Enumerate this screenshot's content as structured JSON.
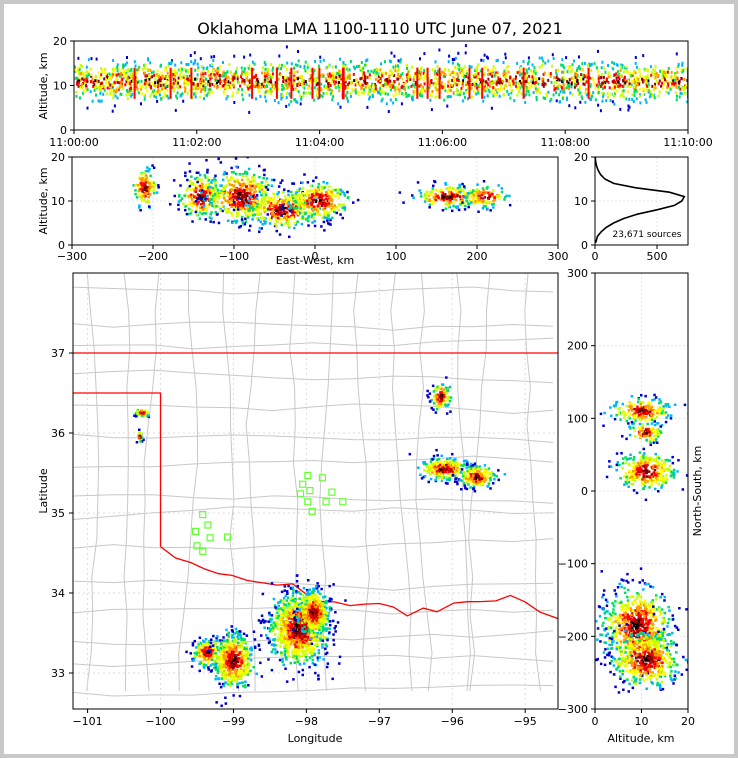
{
  "chart_data": {
    "type": "scatter",
    "title": "Oklahoma LMA 1100-1110 UTC June 07, 2021",
    "colors": {
      "density": [
        "#0000cc",
        "#00b4ff",
        "#00dd66",
        "#c8ff00",
        "#ffff00",
        "#ff9900",
        "#ff0000",
        "#990000",
        "#000000"
      ],
      "state_border": "#ff0000",
      "river_border": "#ff0000",
      "county_lines": "#c8c8c8",
      "stations": "#66ff33"
    },
    "time_panel": {
      "ylabel": "Altitude, km",
      "ylim": [
        0,
        20
      ],
      "yticks": [
        "0",
        "10",
        "20"
      ],
      "xticks": [
        "11:00:00",
        "11:02:00",
        "11:04:00",
        "11:06:00",
        "11:08:00",
        "11:10:00"
      ],
      "altitude_band_km": [
        4,
        16
      ],
      "core_altitude_km": 11
    },
    "ew_panel": {
      "xlabel": "East-West, km",
      "ylabel": "Altitude, km",
      "xlim": [
        -300,
        300
      ],
      "ylim": [
        0,
        20
      ],
      "xticks": [
        "−300",
        "−200",
        "−100",
        "0",
        "100",
        "200",
        "300"
      ],
      "yticks": [
        "0",
        "10",
        "20"
      ],
      "clusters": [
        {
          "x_center_km": -210,
          "x_width_km": 16,
          "alt_center_km": 13,
          "alt_spread_km": 5
        },
        {
          "x_center_km": -140,
          "x_width_km": 28,
          "alt_center_km": 11,
          "alt_spread_km": 6
        },
        {
          "x_center_km": -90,
          "x_width_km": 45,
          "alt_center_km": 11,
          "alt_spread_km": 7
        },
        {
          "x_center_km": -40,
          "x_width_km": 45,
          "alt_center_km": 8,
          "alt_spread_km": 5
        },
        {
          "x_center_km": 5,
          "x_width_km": 40,
          "alt_center_km": 10,
          "alt_spread_km": 5
        },
        {
          "x_center_km": 165,
          "x_width_km": 45,
          "alt_center_km": 11,
          "alt_spread_km": 3
        },
        {
          "x_center_km": 210,
          "x_width_km": 28,
          "alt_center_km": 11,
          "alt_spread_km": 3
        }
      ]
    },
    "histogram_panel": {
      "xlim": [
        0,
        750
      ],
      "ylim": [
        0,
        20
      ],
      "xticks": [
        "0",
        "500"
      ],
      "yticks": [
        "0",
        "10",
        "20"
      ],
      "annotation": "23,671 sources",
      "profile": [
        {
          "alt": 0.5,
          "count": 5
        },
        {
          "alt": 2,
          "count": 20
        },
        {
          "alt": 3,
          "count": 50
        },
        {
          "alt": 4,
          "count": 90
        },
        {
          "alt": 5,
          "count": 150
        },
        {
          "alt": 6,
          "count": 230
        },
        {
          "alt": 7,
          "count": 340
        },
        {
          "alt": 8,
          "count": 500
        },
        {
          "alt": 9,
          "count": 640
        },
        {
          "alt": 10,
          "count": 700
        },
        {
          "alt": 11,
          "count": 720
        },
        {
          "alt": 12,
          "count": 600
        },
        {
          "alt": 13,
          "count": 330
        },
        {
          "alt": 14,
          "count": 150
        },
        {
          "alt": 15,
          "count": 80
        },
        {
          "alt": 16,
          "count": 45
        },
        {
          "alt": 17,
          "count": 25
        },
        {
          "alt": 18,
          "count": 12
        },
        {
          "alt": 19,
          "count": 5
        },
        {
          "alt": 20,
          "count": 2
        }
      ]
    },
    "map_panel": {
      "xlabel": "Longitude",
      "ylabel": "Latitude",
      "xlim": [
        -101.2,
        -94.55
      ],
      "ylim": [
        32.55,
        38.0
      ],
      "xticks": [
        "−101",
        "−100",
        "−99",
        "−98",
        "−97",
        "−96",
        "−95"
      ],
      "yticks": [
        "33",
        "34",
        "35",
        "36",
        "37"
      ],
      "clusters": [
        {
          "lon": -100.25,
          "lat": 36.25,
          "dlon": 0.08,
          "dlat": 0.04
        },
        {
          "lon": -100.28,
          "lat": 35.95,
          "dlon": 0.03,
          "dlat": 0.06
        },
        {
          "lon": -96.15,
          "lat": 36.45,
          "dlon": 0.12,
          "dlat": 0.15
        },
        {
          "lon": -96.1,
          "lat": 35.55,
          "dlon": 0.3,
          "dlat": 0.12
        },
        {
          "lon": -95.65,
          "lat": 35.45,
          "dlon": 0.22,
          "dlat": 0.12
        },
        {
          "lon": -99.35,
          "lat": 33.25,
          "dlon": 0.18,
          "dlat": 0.15
        },
        {
          "lon": -99.0,
          "lat": 33.15,
          "dlon": 0.25,
          "dlat": 0.3
        },
        {
          "lon": -98.1,
          "lat": 33.55,
          "dlon": 0.35,
          "dlat": 0.4
        },
        {
          "lon": -97.9,
          "lat": 33.75,
          "dlon": 0.2,
          "dlat": 0.25
        }
      ],
      "stations": [
        {
          "lon": -97.98,
          "lat": 35.47
        },
        {
          "lon": -97.78,
          "lat": 35.44
        },
        {
          "lon": -98.05,
          "lat": 35.36
        },
        {
          "lon": -97.95,
          "lat": 35.28
        },
        {
          "lon": -98.08,
          "lat": 35.24
        },
        {
          "lon": -97.65,
          "lat": 35.26
        },
        {
          "lon": -97.98,
          "lat": 35.14
        },
        {
          "lon": -97.73,
          "lat": 35.14
        },
        {
          "lon": -97.5,
          "lat": 35.14
        },
        {
          "lon": -97.92,
          "lat": 35.02
        },
        {
          "lon": -99.42,
          "lat": 34.98
        },
        {
          "lon": -99.35,
          "lat": 34.85
        },
        {
          "lon": -99.52,
          "lat": 34.77
        },
        {
          "lon": -99.32,
          "lat": 34.69
        },
        {
          "lon": -99.08,
          "lat": 34.7
        },
        {
          "lon": -99.5,
          "lat": 34.59
        },
        {
          "lon": -99.42,
          "lat": 34.52
        }
      ]
    },
    "ns_panel": {
      "xlabel": "Altitude, km",
      "ylabel": "North-South, km",
      "xlim": [
        0,
        20
      ],
      "ylim": [
        -300,
        300
      ],
      "xticks": [
        "0",
        "10",
        "20"
      ],
      "yticks": [
        "−300",
        "−200",
        "−100",
        "0",
        "100",
        "200",
        "300"
      ],
      "clusters": [
        {
          "alt_center_km": 10,
          "alt_spread_km": 7,
          "ns_center_km": 110,
          "ns_spread_km": 10
        },
        {
          "alt_center_km": 11,
          "alt_spread_km": 4,
          "ns_center_km": 80,
          "ns_spread_km": 8
        },
        {
          "alt_center_km": 11,
          "alt_spread_km": 7,
          "ns_center_km": 27,
          "ns_spread_km": 15
        },
        {
          "alt_center_km": 9,
          "alt_spread_km": 8,
          "ns_center_km": -185,
          "ns_spread_km": 30
        },
        {
          "alt_center_km": 11,
          "alt_spread_km": 8,
          "ns_center_km": -232,
          "ns_spread_km": 22
        }
      ]
    }
  }
}
